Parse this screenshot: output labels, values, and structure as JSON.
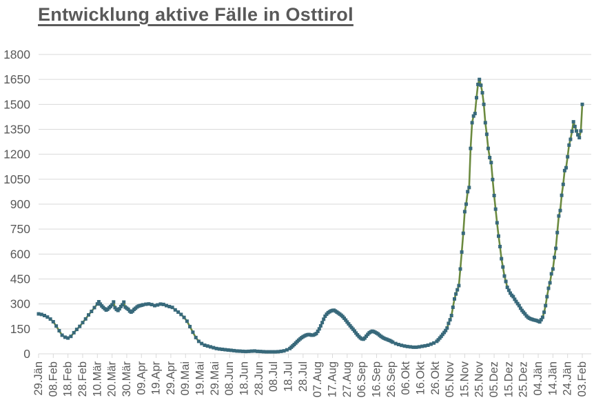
{
  "chart_data": {
    "type": "line",
    "title": "Entwicklung aktive Fälle in Osttirol",
    "legend": "none",
    "grid": "horizontal",
    "ylim": [
      0,
      1800
    ],
    "y_tick_step": 150,
    "y_ticks": [
      1800,
      1650,
      1500,
      1350,
      1200,
      1050,
      900,
      750,
      600,
      450,
      300,
      150,
      0
    ],
    "x_tick_interval_days": 10,
    "x_tick_labels": [
      "29.Jän",
      "08.Feb",
      "18.Feb",
      "28.Feb",
      "10.Mär",
      "20.Mär",
      "30.Mär",
      "09.Apr",
      "19.Apr",
      "29.Apr",
      "09.Mai",
      "19.Mai",
      "29.Mai",
      "08.Jun",
      "18.Jun",
      "28.Jun",
      "08.Jul",
      "18.Jul",
      "28.Jul",
      "07.Aug",
      "17.Aug",
      "27.Aug",
      "06.Sep",
      "16.Sep",
      "26.Sep",
      "06.Okt",
      "16.Okt",
      "26.Okt",
      "05.Nov",
      "15.Nov",
      "25.Nov",
      "05.Dez",
      "15.Dez",
      "25.Dez",
      "04.Jän",
      "14.Jän",
      "24.Jän",
      "03.Feb"
    ],
    "colors": {
      "line": "#6b8a3f",
      "marker": "#38697b",
      "gridline": "#d9d9d9",
      "axis_labels": "#595959",
      "title": "#595959",
      "background": "#ffffff"
    },
    "marker_shape": "square",
    "series": [
      {
        "points": [
          [
            0,
            240
          ],
          [
            2,
            237
          ],
          [
            4,
            230
          ],
          [
            6,
            221
          ],
          [
            8,
            209
          ],
          [
            10,
            193
          ],
          [
            12,
            167
          ],
          [
            14,
            139
          ],
          [
            16,
            112
          ],
          [
            18,
            100
          ],
          [
            20,
            95
          ],
          [
            22,
            105
          ],
          [
            24,
            127
          ],
          [
            26,
            147
          ],
          [
            28,
            165
          ],
          [
            30,
            188
          ],
          [
            32,
            210
          ],
          [
            34,
            234
          ],
          [
            36,
            255
          ],
          [
            38,
            278
          ],
          [
            40,
            300
          ],
          [
            41,
            313
          ],
          [
            42,
            299
          ],
          [
            43,
            288
          ],
          [
            44,
            279
          ],
          [
            45,
            271
          ],
          [
            46,
            263
          ],
          [
            47,
            268
          ],
          [
            48,
            277
          ],
          [
            49,
            285
          ],
          [
            50,
            295
          ],
          [
            51,
            312
          ],
          [
            52,
            278
          ],
          [
            53,
            267
          ],
          [
            54,
            261
          ],
          [
            55,
            271
          ],
          [
            56,
            284
          ],
          [
            57,
            295
          ],
          [
            58,
            311
          ],
          [
            59,
            281
          ],
          [
            60,
            274
          ],
          [
            61,
            268
          ],
          [
            62,
            257
          ],
          [
            63,
            251
          ],
          [
            64,
            257
          ],
          [
            65,
            267
          ],
          [
            66,
            274
          ],
          [
            67,
            282
          ],
          [
            68,
            287
          ],
          [
            69,
            290
          ],
          [
            70,
            292
          ],
          [
            71,
            295
          ],
          [
            73,
            298
          ],
          [
            75,
            300
          ],
          [
            77,
            296
          ],
          [
            79,
            290
          ],
          [
            81,
            294
          ],
          [
            83,
            299
          ],
          [
            85,
            297
          ],
          [
            87,
            290
          ],
          [
            89,
            284
          ],
          [
            91,
            279
          ],
          [
            93,
            264
          ],
          [
            95,
            251
          ],
          [
            97,
            237
          ],
          [
            99,
            219
          ],
          [
            101,
            196
          ],
          [
            103,
            164
          ],
          [
            105,
            130
          ],
          [
            107,
            98
          ],
          [
            109,
            75
          ],
          [
            111,
            62
          ],
          [
            113,
            52
          ],
          [
            115,
            47
          ],
          [
            117,
            42
          ],
          [
            119,
            37
          ],
          [
            121,
            32
          ],
          [
            123,
            29
          ],
          [
            125,
            27
          ],
          [
            127,
            25
          ],
          [
            129,
            23
          ],
          [
            131,
            21
          ],
          [
            133,
            19
          ],
          [
            135,
            17
          ],
          [
            137,
            16
          ],
          [
            139,
            15
          ],
          [
            141,
            14
          ],
          [
            143,
            15
          ],
          [
            145,
            16
          ],
          [
            147,
            17
          ],
          [
            149,
            15
          ],
          [
            151,
            14
          ],
          [
            153,
            13
          ],
          [
            155,
            12
          ],
          [
            157,
            12
          ],
          [
            159,
            12
          ],
          [
            161,
            12
          ],
          [
            163,
            13
          ],
          [
            165,
            15
          ],
          [
            167,
            18
          ],
          [
            169,
            24
          ],
          [
            171,
            32
          ],
          [
            172,
            40
          ],
          [
            173,
            48
          ],
          [
            174,
            56
          ],
          [
            175,
            65
          ],
          [
            176,
            74
          ],
          [
            177,
            82
          ],
          [
            178,
            90
          ],
          [
            179,
            97
          ],
          [
            180,
            103
          ],
          [
            181,
            108
          ],
          [
            182,
            112
          ],
          [
            183,
            115
          ],
          [
            184,
            116
          ],
          [
            185,
            114
          ],
          [
            186,
            112
          ],
          [
            187,
            113
          ],
          [
            188,
            117
          ],
          [
            189,
            122
          ],
          [
            190,
            135
          ],
          [
            191,
            150
          ],
          [
            192,
            168
          ],
          [
            193,
            188
          ],
          [
            194,
            208
          ],
          [
            195,
            226
          ],
          [
            196,
            238
          ],
          [
            197,
            247
          ],
          [
            198,
            253
          ],
          [
            199,
            258
          ],
          [
            200,
            261
          ],
          [
            201,
            262
          ],
          [
            202,
            257
          ],
          [
            203,
            251
          ],
          [
            204,
            245
          ],
          [
            205,
            239
          ],
          [
            206,
            232
          ],
          [
            207,
            224
          ],
          [
            208,
            214
          ],
          [
            209,
            203
          ],
          [
            210,
            191
          ],
          [
            211,
            180
          ],
          [
            212,
            169
          ],
          [
            213,
            158
          ],
          [
            214,
            148
          ],
          [
            215,
            137
          ],
          [
            216,
            125
          ],
          [
            217,
            114
          ],
          [
            218,
            104
          ],
          [
            219,
            96
          ],
          [
            220,
            90
          ],
          [
            221,
            88
          ],
          [
            222,
            95
          ],
          [
            223,
            106
          ],
          [
            224,
            117
          ],
          [
            225,
            126
          ],
          [
            226,
            132
          ],
          [
            227,
            136
          ],
          [
            228,
            134
          ],
          [
            229,
            130
          ],
          [
            230,
            125
          ],
          [
            231,
            120
          ],
          [
            232,
            112
          ],
          [
            233,
            105
          ],
          [
            234,
            99
          ],
          [
            235,
            94
          ],
          [
            236,
            90
          ],
          [
            237,
            87
          ],
          [
            238,
            83
          ],
          [
            239,
            80
          ],
          [
            240,
            75
          ],
          [
            241,
            70
          ],
          [
            243,
            62
          ],
          [
            245,
            56
          ],
          [
            247,
            51
          ],
          [
            249,
            47
          ],
          [
            251,
            44
          ],
          [
            253,
            42
          ],
          [
            255,
            40
          ],
          [
            257,
            40
          ],
          [
            259,
            42
          ],
          [
            261,
            45
          ],
          [
            263,
            48
          ],
          [
            265,
            52
          ],
          [
            267,
            58
          ],
          [
            269,
            65
          ],
          [
            271,
            75
          ],
          [
            272,
            84
          ],
          [
            273,
            95
          ],
          [
            274,
            105
          ],
          [
            275,
            117
          ],
          [
            276,
            128
          ],
          [
            277,
            140
          ],
          [
            278,
            155
          ],
          [
            279,
            183
          ],
          [
            280,
            205
          ],
          [
            281,
            230
          ],
          [
            282,
            280
          ],
          [
            283,
            330
          ],
          [
            284,
            360
          ],
          [
            285,
            385
          ],
          [
            286,
            410
          ],
          [
            287,
            510
          ],
          [
            288,
            612
          ],
          [
            289,
            725
          ],
          [
            290,
            855
          ],
          [
            291,
            900
          ],
          [
            292,
            975
          ],
          [
            293,
            1000
          ],
          [
            294,
            1235
          ],
          [
            295,
            1390
          ],
          [
            296,
            1430
          ],
          [
            297,
            1445
          ],
          [
            298,
            1540
          ],
          [
            299,
            1620
          ],
          [
            300,
            1650
          ],
          [
            301,
            1615
          ],
          [
            302,
            1570
          ],
          [
            303,
            1500
          ],
          [
            304,
            1390
          ],
          [
            305,
            1320
          ],
          [
            306,
            1235
          ],
          [
            307,
            1180
          ],
          [
            308,
            1150
          ],
          [
            309,
            1048
          ],
          [
            310,
            952
          ],
          [
            311,
            870
          ],
          [
            312,
            788
          ],
          [
            313,
            708
          ],
          [
            314,
            645
          ],
          [
            315,
            572
          ],
          [
            316,
            522
          ],
          [
            317,
            468
          ],
          [
            318,
            435
          ],
          [
            319,
            400
          ],
          [
            320,
            382
          ],
          [
            321,
            365
          ],
          [
            322,
            352
          ],
          [
            323,
            344
          ],
          [
            324,
            328
          ],
          [
            325,
            315
          ],
          [
            326,
            302
          ],
          [
            327,
            290
          ],
          [
            328,
            274
          ],
          [
            329,
            261
          ],
          [
            330,
            250
          ],
          [
            331,
            240
          ],
          [
            332,
            228
          ],
          [
            333,
            220
          ],
          [
            334,
            214
          ],
          [
            335,
            210
          ],
          [
            336,
            207
          ],
          [
            337,
            204
          ],
          [
            338,
            202
          ],
          [
            339,
            200
          ],
          [
            340,
            196
          ],
          [
            341,
            192
          ],
          [
            342,
            205
          ],
          [
            343,
            220
          ],
          [
            344,
            250
          ],
          [
            345,
            290
          ],
          [
            346,
            344
          ],
          [
            347,
            394
          ],
          [
            348,
            427
          ],
          [
            349,
            481
          ],
          [
            350,
            510
          ],
          [
            351,
            580
          ],
          [
            352,
            634
          ],
          [
            353,
            729
          ],
          [
            354,
            829
          ],
          [
            355,
            862
          ],
          [
            356,
            953
          ],
          [
            357,
            1019
          ],
          [
            358,
            1102
          ],
          [
            359,
            1119
          ],
          [
            360,
            1185
          ],
          [
            361,
            1255
          ],
          [
            362,
            1290
          ],
          [
            363,
            1338
          ],
          [
            364,
            1395
          ],
          [
            365,
            1367
          ],
          [
            366,
            1340
          ],
          [
            367,
            1317
          ],
          [
            368,
            1300
          ],
          [
            369,
            1340
          ],
          [
            370,
            1500
          ]
        ]
      }
    ]
  }
}
